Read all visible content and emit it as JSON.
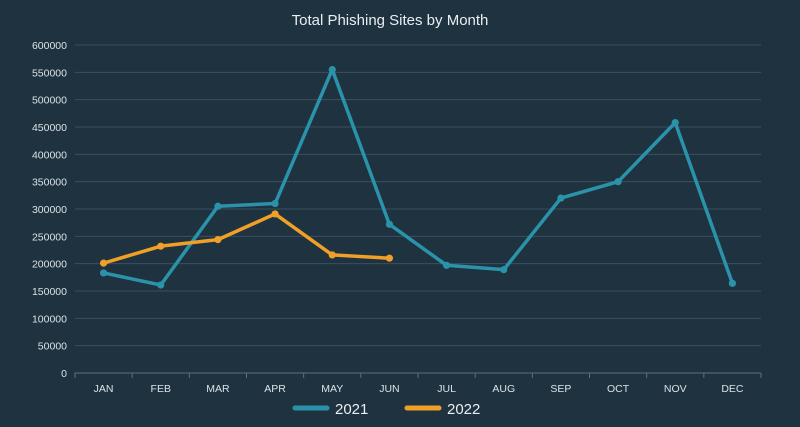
{
  "chart_data": {
    "type": "line",
    "title": "Total Phishing Sites by Month",
    "categories": [
      "JAN",
      "FEB",
      "MAR",
      "APR",
      "MAY",
      "JUN",
      "JUL",
      "AUG",
      "SEP",
      "OCT",
      "NOV",
      "DEC"
    ],
    "y_ticks": [
      "0",
      "50000",
      "100000",
      "150000",
      "200000",
      "250000",
      "300000",
      "350000",
      "400000",
      "450000",
      "500000",
      "550000",
      "600000"
    ],
    "ylim": [
      0,
      600000
    ],
    "grid": true,
    "legend_position": "bottom",
    "series": [
      {
        "name": "2021",
        "color": "#2a93aa",
        "values": [
          183000,
          161000,
          305000,
          310000,
          555000,
          272000,
          197000,
          189000,
          320000,
          350000,
          458000,
          164000
        ]
      },
      {
        "name": "2022",
        "color": "#f0a026",
        "values": [
          201000,
          232000,
          244000,
          291000,
          216000,
          210000,
          null,
          null,
          null,
          null,
          null,
          null
        ]
      }
    ]
  }
}
